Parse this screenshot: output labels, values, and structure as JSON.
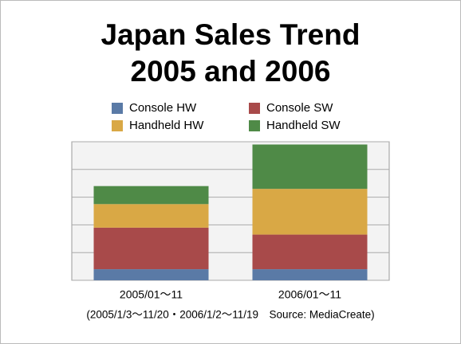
{
  "chart_data": {
    "type": "stacked-bar",
    "title": "Japan Sales Trend",
    "subtitle": "2005 and 2006",
    "categories": [
      "2005/01～11",
      "2006/01～11"
    ],
    "series": [
      {
        "name": "Console HW",
        "color": "#5a7aa6",
        "values": [
          0.4,
          0.4
        ]
      },
      {
        "name": "Console SW",
        "color": "#a84a4a",
        "values": [
          1.5,
          1.25
        ]
      },
      {
        "name": "Handheld HW",
        "color": "#d9a845",
        "values": [
          0.85,
          1.65
        ]
      },
      {
        "name": "Handheld SW",
        "color": "#4f8a47",
        "values": [
          0.65,
          1.6
        ]
      }
    ],
    "ylim": [
      0,
      5
    ],
    "yticks": [
      0,
      1,
      2,
      3,
      4,
      5
    ],
    "grid": true,
    "note": "(2005/1/3～11/20・2006/1/2～11/19　Source: MediaCreate)"
  }
}
